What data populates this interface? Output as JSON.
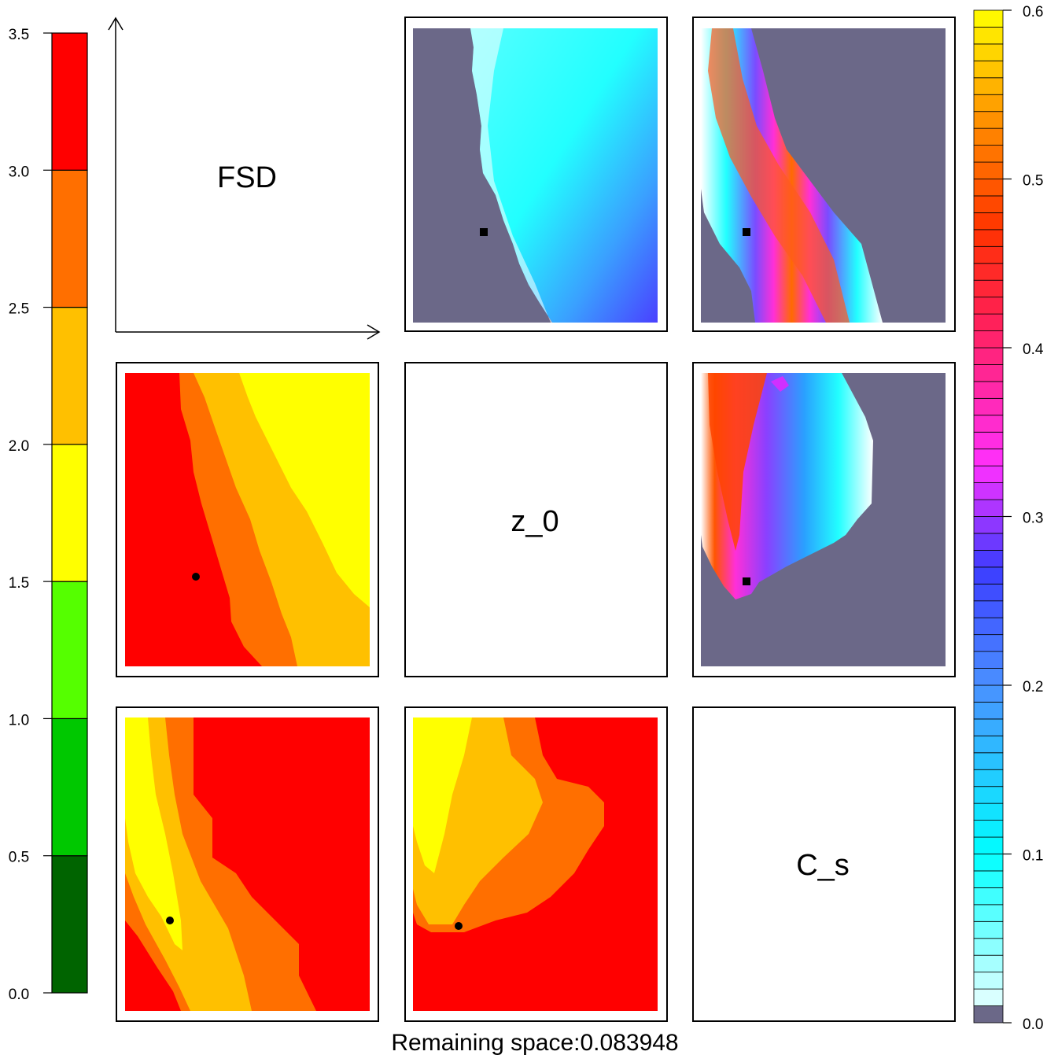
{
  "chart_data": {
    "type": "heatmap",
    "title": "",
    "caption": "Remaining space:0.083948",
    "diagonal_labels": [
      "FSD",
      "z_0",
      "C_s"
    ],
    "left_colorbar": {
      "ticks": [
        "0.0",
        "0.5",
        "1.0",
        "1.5",
        "2.0",
        "2.5",
        "3.0",
        "3.5"
      ],
      "range": [
        0,
        3.5
      ],
      "bins": [
        {
          "from": 0.0,
          "to": 0.5,
          "color": "#006400"
        },
        {
          "from": 0.5,
          "to": 1.0,
          "color": "#00c800"
        },
        {
          "from": 1.0,
          "to": 1.5,
          "color": "#55ff00"
        },
        {
          "from": 1.5,
          "to": 2.0,
          "color": "#ffff00"
        },
        {
          "from": 2.0,
          "to": 2.5,
          "color": "#ffc000"
        },
        {
          "from": 2.5,
          "to": 3.0,
          "color": "#ff6f00"
        },
        {
          "from": 3.0,
          "to": 3.5,
          "color": "#ff0000"
        }
      ]
    },
    "right_colorbar": {
      "ticks": [
        "0.0",
        "0.1",
        "0.2",
        "0.3",
        "0.4",
        "0.5",
        "0.6"
      ],
      "range": [
        0,
        0.6
      ],
      "levels": 60,
      "stops": [
        {
          "v": 0.0,
          "color": "#ffffff"
        },
        {
          "v": 0.1,
          "color": "#00ffff"
        },
        {
          "v": 0.2,
          "color": "#4a90ff"
        },
        {
          "v": 0.27,
          "color": "#3c3cff"
        },
        {
          "v": 0.33,
          "color": "#ff30ff"
        },
        {
          "v": 0.42,
          "color": "#ff2050"
        },
        {
          "v": 0.47,
          "color": "#ff3300"
        },
        {
          "v": 0.53,
          "color": "#ff8800"
        },
        {
          "v": 0.6,
          "color": "#ffff00"
        }
      ],
      "below_color": "#6b6888"
    },
    "panels": {
      "fsd_z0": {
        "marker": "square",
        "background": "#6b6888"
      },
      "fsd_cs": {
        "marker": "square",
        "background": "#6b6888"
      },
      "z0_cs": {
        "marker": "square",
        "background": "#6b6888"
      },
      "z0_fsd": {
        "marker": "circle"
      },
      "cs_fsd": {
        "marker": "circle"
      },
      "cs_z0": {
        "marker": "circle"
      }
    }
  }
}
